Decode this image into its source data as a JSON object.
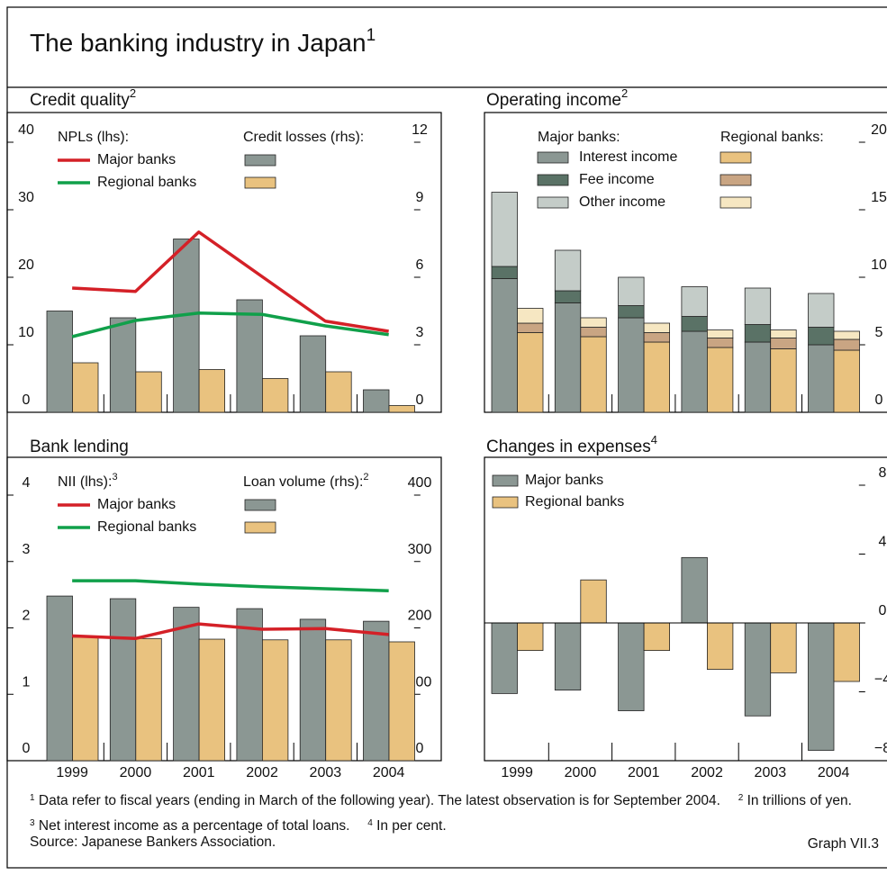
{
  "title": "The banking industry in Japan",
  "title_note": "1",
  "chart_data": [
    {
      "type": "bar_line",
      "title": "Credit quality",
      "title_note": "2",
      "legend_left_title": "NPLs (lhs):",
      "legend_right_title": "Credit losses (rhs):",
      "ylim": [
        0,
        40
      ],
      "yticks": [
        0,
        10,
        20,
        30,
        40
      ],
      "y2lim": [
        0,
        12
      ],
      "y2ticks": [
        0,
        3,
        6,
        9,
        12
      ],
      "series": [
        {
          "name": "Major banks",
          "color": "#d42027",
          "values": [
            18.4,
            17.9,
            26.7,
            20.1,
            13.5,
            12.0
          ]
        },
        {
          "name": "Regional banks",
          "color": "#10a04a",
          "values": [
            11.2,
            13.6,
            14.7,
            14.5,
            12.8,
            11.5
          ]
        }
      ],
      "bars": [
        {
          "color": "#8b9793",
          "axis": "y2",
          "values": [
            4.5,
            4.2,
            7.7,
            5.0,
            3.4,
            1.0
          ]
        },
        {
          "color": "#e9c27f",
          "axis": "y2",
          "values": [
            2.2,
            1.8,
            1.9,
            1.5,
            1.8,
            0.3
          ]
        }
      ]
    },
    {
      "type": "stacked_bar",
      "title": "Operating income",
      "title_note": "2",
      "y_axis_side": "right",
      "ylim": [
        0,
        20
      ],
      "yticks": [
        0,
        5,
        10,
        15,
        20
      ],
      "groups": [
        {
          "name": "Major banks:",
          "series": [
            {
              "name": "Interest income",
              "color": "#8b9793",
              "values": [
                9.9,
                8.1,
                7.0,
                6.0,
                5.2,
                5.0
              ]
            },
            {
              "name": "Fee income",
              "color": "#5a7266",
              "values": [
                0.9,
                0.9,
                0.9,
                1.1,
                1.3,
                1.3
              ]
            },
            {
              "name": "Other income",
              "color": "#c4ccc8",
              "values": [
                5.5,
                3.0,
                2.1,
                2.2,
                2.7,
                2.5
              ]
            }
          ]
        },
        {
          "name": "Regional banks:",
          "series": [
            {
              "color": "#e9c27f",
              "values": [
                5.9,
                5.6,
                5.2,
                4.8,
                4.7,
                4.6
              ]
            },
            {
              "color": "#c9a583",
              "values": [
                0.7,
                0.7,
                0.7,
                0.7,
                0.8,
                0.8
              ]
            },
            {
              "color": "#f6e7c2",
              "values": [
                1.1,
                0.7,
                0.7,
                0.6,
                0.6,
                0.6
              ]
            }
          ]
        }
      ]
    },
    {
      "type": "bar_line",
      "title": "Bank lending",
      "legend_left_title": "NII (lhs):",
      "legend_left_note": "3",
      "legend_right_title": "Loan volume (rhs):",
      "legend_right_note": "2",
      "categories": [
        "1999",
        "2000",
        "2001",
        "2002",
        "2003",
        "2004"
      ],
      "ylim": [
        0,
        4
      ],
      "yticks": [
        0,
        1,
        2,
        3,
        4
      ],
      "y2lim": [
        0,
        400
      ],
      "y2ticks": [
        0,
        100,
        200,
        300,
        400
      ],
      "series": [
        {
          "name": "Major banks",
          "color": "#d42027",
          "values": [
            1.88,
            1.84,
            2.06,
            1.98,
            1.99,
            1.9
          ]
        },
        {
          "name": "Regional banks",
          "color": "#10a04a",
          "values": [
            2.71,
            2.71,
            2.66,
            2.62,
            2.59,
            2.56
          ]
        }
      ],
      "bars": [
        {
          "color": "#8b9793",
          "axis": "y2",
          "values": [
            248,
            244,
            231,
            229,
            213,
            210
          ]
        },
        {
          "color": "#e9c27f",
          "axis": "y2",
          "values": [
            186,
            184,
            183,
            182,
            182,
            179
          ]
        }
      ]
    },
    {
      "type": "bar",
      "title": "Changes in expenses",
      "title_note": "4",
      "y_axis_side": "right",
      "categories": [
        "1999",
        "2000",
        "2001",
        "2002",
        "2003",
        "2004"
      ],
      "ylim": [
        -8,
        8
      ],
      "yticks": [
        {
          "value": -8,
          "label": "−8"
        },
        {
          "value": -4,
          "label": "−4"
        },
        0,
        4,
        8
      ],
      "series": [
        {
          "name": "Major banks",
          "color": "#8b9793",
          "values": [
            -4.1,
            -3.9,
            -5.1,
            3.8,
            -5.4,
            -7.4
          ]
        },
        {
          "name": "Regional banks",
          "color": "#e9c27f",
          "values": [
            -1.6,
            2.5,
            -1.6,
            -2.7,
            -2.9,
            -3.4
          ]
        }
      ]
    }
  ],
  "notes": [
    {
      "mark": "1",
      "text": "Data refer to fiscal years (ending in March of the following year). The latest observation is for September 2004."
    },
    {
      "mark": "2",
      "text": "In trillions of yen."
    },
    {
      "mark": "3",
      "text": "Net interest income as a percentage of total loans."
    },
    {
      "mark": "4",
      "text": "In per cent."
    }
  ],
  "source": "Source: Japanese Bankers Association.",
  "graph_label": "Graph VII.3"
}
